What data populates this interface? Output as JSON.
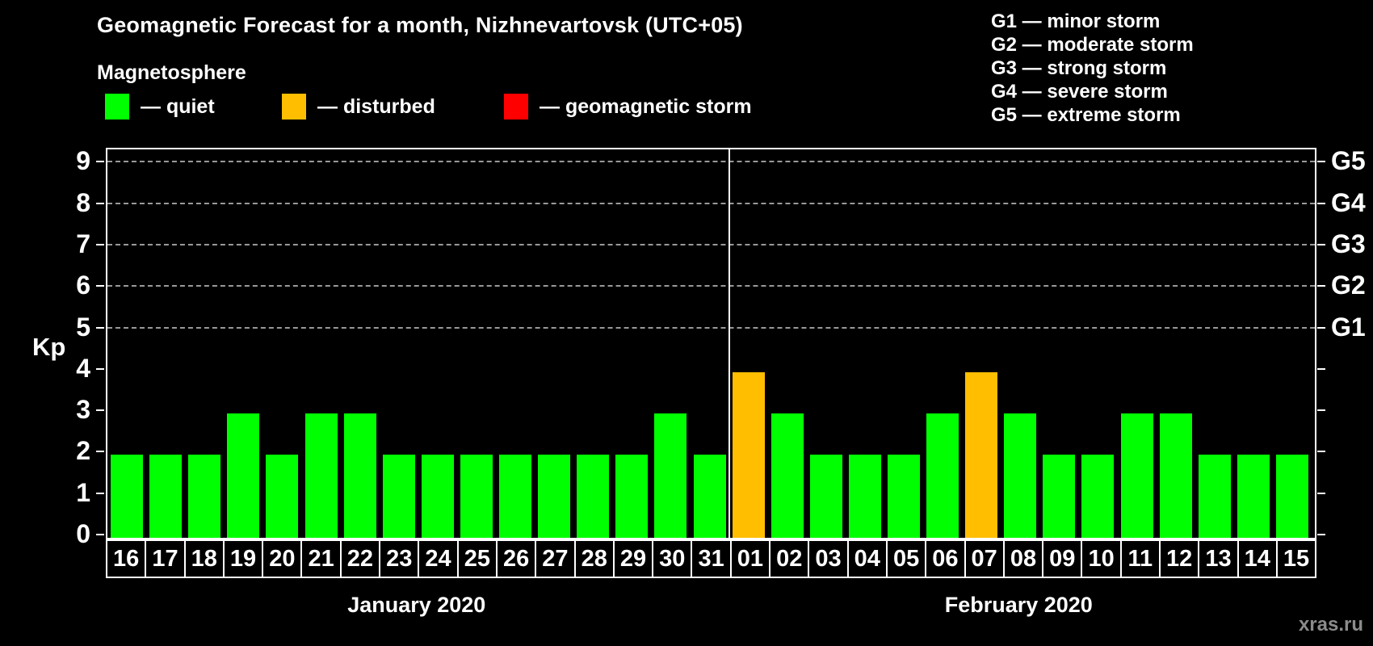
{
  "title": "Geomagnetic Forecast for a month, Nizhnevartovsk (UTC+05)",
  "subtitle": "Magnetosphere",
  "legend": {
    "items": [
      {
        "name": "quiet",
        "label": "— quiet",
        "color": "#00ff00"
      },
      {
        "name": "disturbed",
        "label": "— disturbed",
        "color": "#ffbe00"
      },
      {
        "name": "storm",
        "label": "— geomagnetic storm",
        "color": "#ff0000"
      }
    ]
  },
  "g_legend": {
    "items": [
      {
        "label": "G1 — minor storm"
      },
      {
        "label": "G2 — moderate storm"
      },
      {
        "label": "G3 — strong storm"
      },
      {
        "label": "G4 — severe storm"
      },
      {
        "label": "G5 — extreme storm"
      }
    ]
  },
  "watermark": "xras.ru",
  "chart_data": {
    "type": "bar",
    "title": "Geomagnetic Forecast for a month, Nizhnevartovsk (UTC+05)",
    "ylabel": "Kp",
    "ylim": [
      0,
      9.3
    ],
    "grid": "dashed horizontal at Kp 5-9",
    "gridlines_kp": [
      5,
      6,
      7,
      8,
      9
    ],
    "y_ticks": [
      0,
      1,
      2,
      3,
      4,
      5,
      6,
      7,
      8,
      9
    ],
    "right_axis_labels": [
      {
        "kp": 5,
        "label": "G1"
      },
      {
        "kp": 6,
        "label": "G2"
      },
      {
        "kp": 7,
        "label": "G3"
      },
      {
        "kp": 8,
        "label": "G4"
      },
      {
        "kp": 9,
        "label": "G5"
      }
    ],
    "status_colors": {
      "quiet": "#00ff00",
      "disturbed": "#ffbe00",
      "storm": "#ff0000"
    },
    "categories": [
      "16",
      "17",
      "18",
      "19",
      "20",
      "21",
      "22",
      "23",
      "24",
      "25",
      "26",
      "27",
      "28",
      "29",
      "30",
      "31",
      "01",
      "02",
      "03",
      "04",
      "05",
      "06",
      "07",
      "08",
      "09",
      "10",
      "11",
      "12",
      "13",
      "14",
      "15"
    ],
    "values": [
      2,
      2,
      2,
      3,
      2,
      3,
      3,
      2,
      2,
      2,
      2,
      2,
      2,
      2,
      3,
      2,
      4,
      3,
      2,
      2,
      2,
      3,
      4,
      3,
      2,
      2,
      3,
      3,
      2,
      2,
      2
    ],
    "statuses": [
      "quiet",
      "quiet",
      "quiet",
      "quiet",
      "quiet",
      "quiet",
      "quiet",
      "quiet",
      "quiet",
      "quiet",
      "quiet",
      "quiet",
      "quiet",
      "quiet",
      "quiet",
      "quiet",
      "disturbed",
      "quiet",
      "quiet",
      "quiet",
      "quiet",
      "quiet",
      "disturbed",
      "quiet",
      "quiet",
      "quiet",
      "quiet",
      "quiet",
      "quiet",
      "quiet",
      "quiet"
    ],
    "months": [
      {
        "label": "January 2020",
        "start": 0,
        "count": 16
      },
      {
        "label": "February 2020",
        "start": 16,
        "count": 15
      }
    ]
  }
}
